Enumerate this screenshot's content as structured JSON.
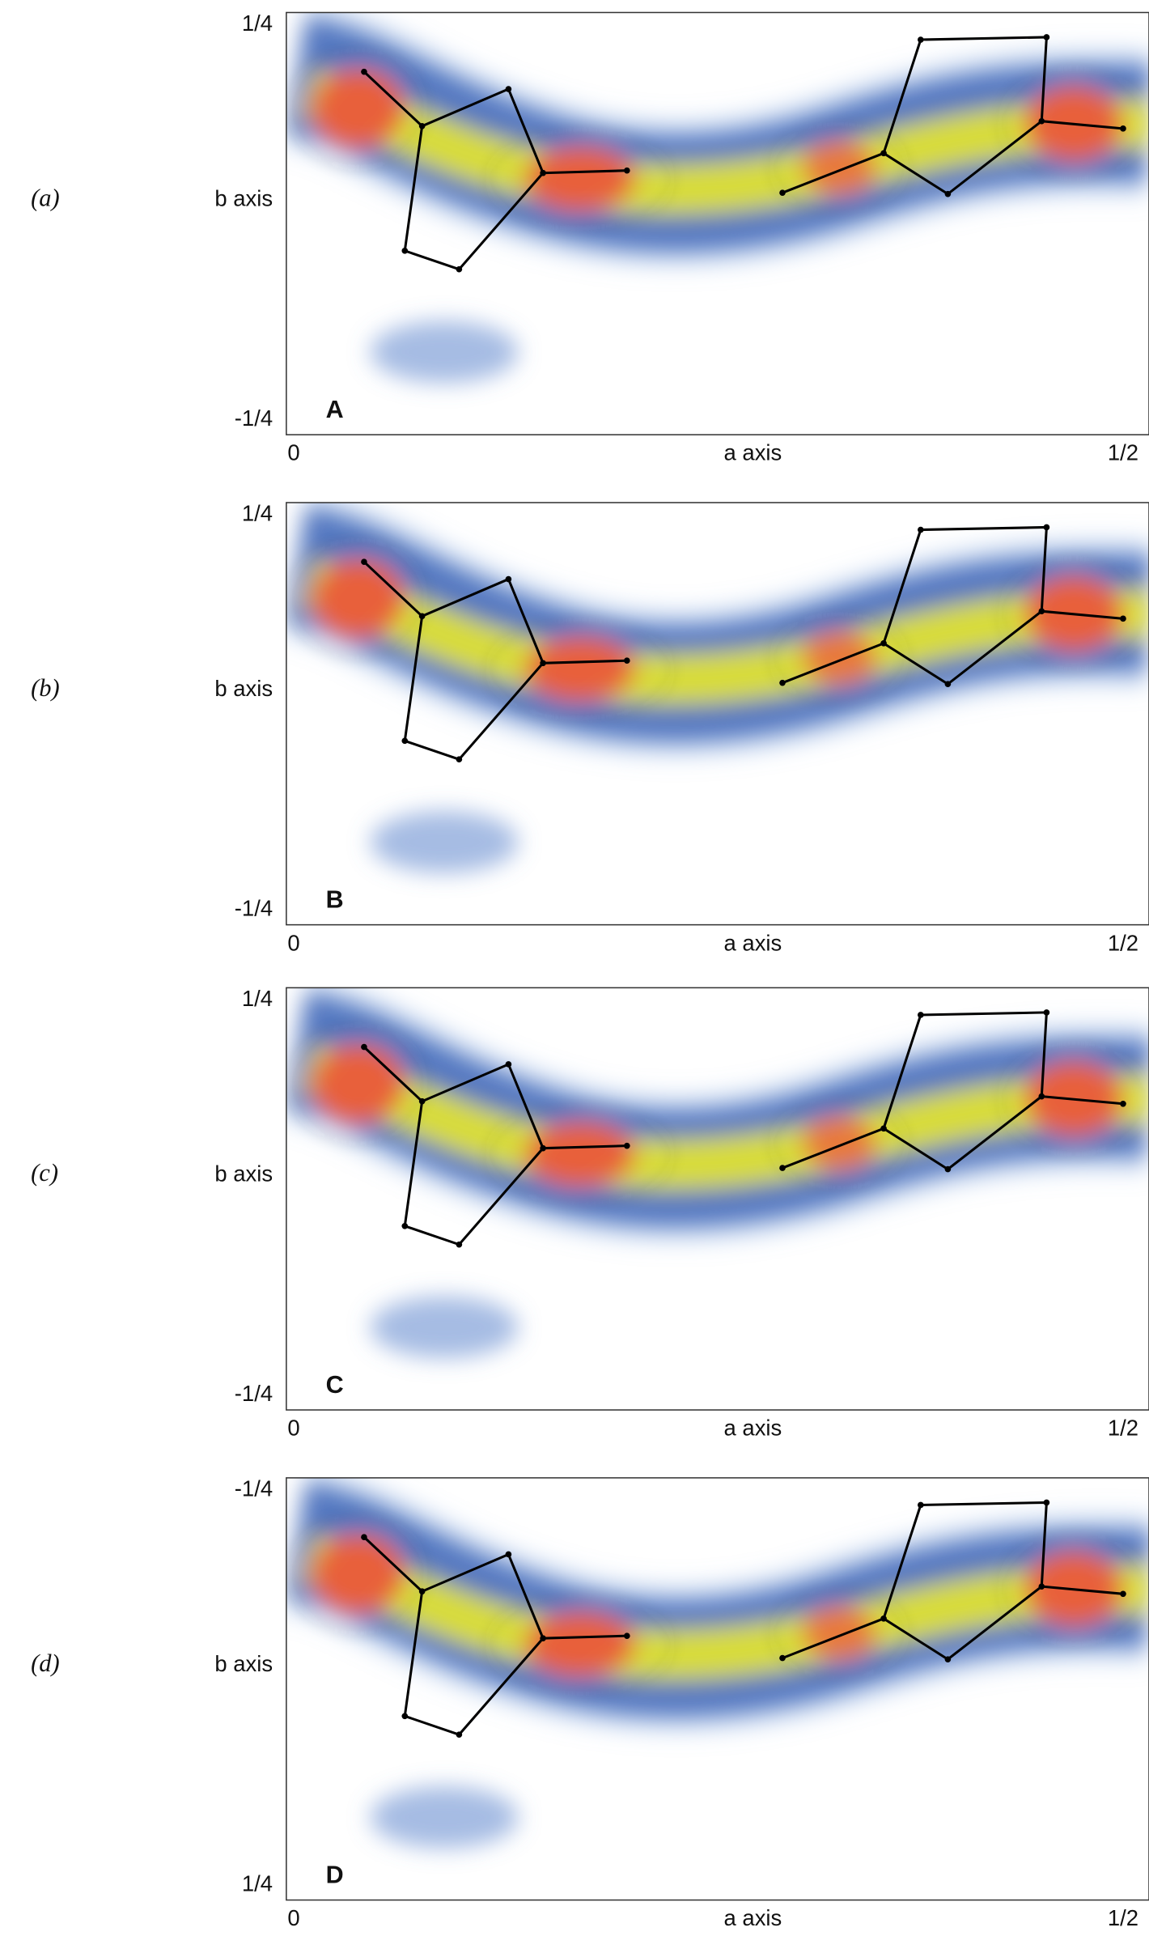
{
  "panels": [
    {
      "label": "(a)",
      "letter": "A",
      "y_axis_label": "b axis",
      "y_top": "1/4",
      "y_bottom": "-1/4",
      "x_left": "0",
      "x_right": "1/2",
      "x_axis_label": "a axis"
    },
    {
      "label": "(b)",
      "letter": "B",
      "y_axis_label": "b axis",
      "y_top": "1/4",
      "y_bottom": "-1/4",
      "x_left": "0",
      "x_right": "1/2",
      "x_axis_label": "a axis"
    },
    {
      "label": "(c)",
      "letter": "C",
      "y_axis_label": "b axis",
      "y_top": "1/4",
      "y_bottom": "-1/4",
      "x_left": "0",
      "x_right": "1/2",
      "x_axis_label": "a axis"
    },
    {
      "label": "(d)",
      "letter": "D",
      "y_axis_label": "b axis",
      "y_top": "-1/4",
      "y_bottom": "1/4",
      "x_left": "0",
      "x_right": "1/2",
      "x_axis_label": "a axis"
    }
  ]
}
